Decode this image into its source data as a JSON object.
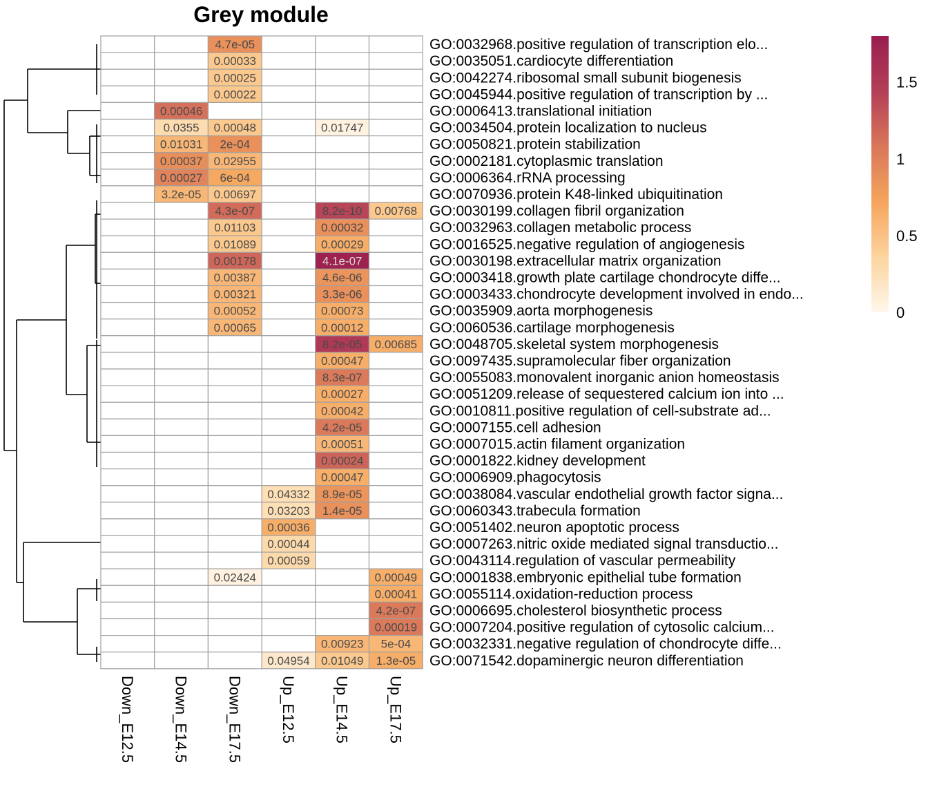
{
  "chart_data": {
    "type": "heatmap",
    "title": "Grey module",
    "columns": [
      "Down_E12.5",
      "Down_E14.5",
      "Down_E17.5",
      "Up_E12.5",
      "Up_E14.5",
      "Up_E17.5"
    ],
    "rows": [
      "GO:0032968.positive regulation of transcription elo...",
      "GO:0035051.cardiocyte differentiation",
      "GO:0042274.ribosomal small subunit biogenesis",
      "GO:0045944.positive regulation of transcription by ...",
      "GO:0006413.translational initiation",
      "GO:0034504.protein localization to nucleus",
      "GO:0050821.protein stabilization",
      "GO:0002181.cytoplasmic translation",
      "GO:0006364.rRNA processing",
      "GO:0070936.protein K48-linked ubiquitination",
      "GO:0030199.collagen fibril organization",
      "GO:0032963.collagen metabolic process",
      "GO:0016525.negative regulation of angiogenesis",
      "GO:0030198.extracellular matrix organization",
      "GO:0003418.growth plate cartilage chondrocyte diffe...",
      "GO:0003433.chondrocyte development involved in endo...",
      "GO:0035909.aorta morphogenesis",
      "GO:0060536.cartilage morphogenesis",
      "GO:0048705.skeletal system morphogenesis",
      "GO:0097435.supramolecular fiber organization",
      "GO:0055083.monovalent inorganic anion homeostasis",
      "GO:0051209.release of sequestered calcium ion into ...",
      "GO:0010811.positive regulation of cell-substrate ad...",
      "GO:0007155.cell adhesion",
      "GO:0007015.actin filament organization",
      "GO:0001822.kidney development",
      "GO:0006909.phagocytosis",
      "GO:0038084.vascular endothelial growth factor signa...",
      "GO:0060343.trabecula formation",
      "GO:0051402.neuron apoptotic process",
      "GO:0007263.nitric oxide mediated signal transductio...",
      "GO:0043114.regulation of vascular permeability",
      "GO:0001838.embryonic epithelial tube formation",
      "GO:0055114.oxidation-reduction process",
      "GO:0006695.cholesterol biosynthetic process",
      "GO:0007204.positive regulation of cytosolic calcium...",
      "GO:0032331.negative regulation of chondrocyte diffe...",
      "GO:0071542.dopaminergic neuron differentiation"
    ],
    "cells": [
      [
        null,
        null,
        {
          "label": "4.7e-05",
          "value": 0.88
        },
        null,
        null,
        null
      ],
      [
        null,
        null,
        {
          "label": "0.00033",
          "value": 0.45
        },
        null,
        null,
        null
      ],
      [
        null,
        null,
        {
          "label": "0.00025",
          "value": 0.45
        },
        null,
        null,
        null
      ],
      [
        null,
        null,
        {
          "label": "0.00022",
          "value": 0.45
        },
        null,
        null,
        null
      ],
      [
        null,
        {
          "label": "0.00046",
          "value": 1.12
        },
        null,
        null,
        null,
        null
      ],
      [
        null,
        {
          "label": "0.0355",
          "value": 0.28
        },
        {
          "label": "0.00048",
          "value": 0.45
        },
        null,
        {
          "label": "0.01747",
          "value": 0.05
        },
        null
      ],
      [
        null,
        {
          "label": "0.01031",
          "value": 0.58
        },
        {
          "label": "2e-04",
          "value": 0.88
        },
        null,
        null,
        null
      ],
      [
        null,
        {
          "label": "0.00037",
          "value": 0.9
        },
        {
          "label": "0.02955",
          "value": 0.58
        },
        null,
        null,
        null
      ],
      [
        null,
        {
          "label": "0.00027",
          "value": 0.98
        },
        {
          "label": "6e-04",
          "value": 0.7
        },
        null,
        null,
        null
      ],
      [
        null,
        {
          "label": "3.2e-05",
          "value": 0.58
        },
        {
          "label": "0.00697",
          "value": 0.45
        },
        null,
        null,
        null
      ],
      [
        null,
        null,
        {
          "label": "4.3e-07",
          "value": 1.15
        },
        null,
        {
          "label": "8.2e-10",
          "value": 1.4
        },
        {
          "label": "0.00768",
          "value": 0.45
        }
      ],
      [
        null,
        null,
        {
          "label": "0.01103",
          "value": 0.45
        },
        null,
        {
          "label": "0.00032",
          "value": 0.88
        },
        null
      ],
      [
        null,
        null,
        {
          "label": "0.01089",
          "value": 0.45
        },
        null,
        {
          "label": "0.00029",
          "value": 0.65
        },
        null
      ],
      [
        null,
        null,
        {
          "label": "0.00178",
          "value": 1.18
        },
        null,
        {
          "label": "4.1e-07",
          "value": 1.75
        },
        null
      ],
      [
        null,
        null,
        {
          "label": "0.00387",
          "value": 0.58
        },
        null,
        {
          "label": "4.6e-06",
          "value": 0.85
        },
        null
      ],
      [
        null,
        null,
        {
          "label": "0.00321",
          "value": 0.58
        },
        null,
        {
          "label": "3.3e-06",
          "value": 0.88
        },
        null
      ],
      [
        null,
        null,
        {
          "label": "0.00052",
          "value": 0.58
        },
        null,
        {
          "label": "0.00073",
          "value": 0.65
        },
        null
      ],
      [
        null,
        null,
        {
          "label": "0.00065",
          "value": 0.58
        },
        null,
        {
          "label": "0.00012",
          "value": 0.65
        },
        null
      ],
      [
        null,
        null,
        null,
        null,
        {
          "label": "8.2e-05",
          "value": 1.5
        },
        {
          "label": "0.00685",
          "value": 0.65
        }
      ],
      [
        null,
        null,
        null,
        null,
        {
          "label": "0.00047",
          "value": 0.65
        },
        null
      ],
      [
        null,
        null,
        null,
        null,
        {
          "label": "8.3e-07",
          "value": 1.05
        },
        null
      ],
      [
        null,
        null,
        null,
        null,
        {
          "label": "0.00027",
          "value": 0.65
        },
        null
      ],
      [
        null,
        null,
        null,
        null,
        {
          "label": "0.00042",
          "value": 0.65
        },
        null
      ],
      [
        null,
        null,
        null,
        null,
        {
          "label": "4.2e-05",
          "value": 1.05
        },
        null
      ],
      [
        null,
        null,
        null,
        null,
        {
          "label": "0.00051",
          "value": 0.58
        },
        null
      ],
      [
        null,
        null,
        null,
        null,
        {
          "label": "0.00024",
          "value": 1.2
        },
        null
      ],
      [
        null,
        null,
        null,
        null,
        {
          "label": "0.00047",
          "value": 0.65
        },
        null
      ],
      [
        null,
        null,
        null,
        {
          "label": "0.04332",
          "value": 0.25
        },
        {
          "label": "8.9e-05",
          "value": 0.85
        },
        null
      ],
      [
        null,
        null,
        null,
        {
          "label": "0.03203",
          "value": 0.25
        },
        {
          "label": "1.4e-05",
          "value": 0.88
        },
        null
      ],
      [
        null,
        null,
        null,
        {
          "label": "0.00036",
          "value": 0.65
        },
        null,
        null
      ],
      [
        null,
        null,
        null,
        {
          "label": "0.00044",
          "value": 0.3
        },
        null,
        null
      ],
      [
        null,
        null,
        null,
        {
          "label": "0.00059",
          "value": 0.3
        },
        null,
        null
      ],
      [
        null,
        null,
        {
          "label": "0.02424",
          "value": 0.05
        },
        null,
        null,
        {
          "label": "0.00049",
          "value": 0.65
        }
      ],
      [
        null,
        null,
        null,
        null,
        null,
        {
          "label": "0.00041",
          "value": 0.65
        }
      ],
      [
        null,
        null,
        null,
        null,
        null,
        {
          "label": "4.2e-07",
          "value": 1.05
        }
      ],
      [
        null,
        null,
        null,
        null,
        null,
        {
          "label": "0.00019",
          "value": 1.05
        }
      ],
      [
        null,
        null,
        null,
        null,
        {
          "label": "0.00923",
          "value": 0.58
        },
        {
          "label": "5e-04",
          "value": 0.58
        }
      ],
      [
        null,
        null,
        null,
        {
          "label": "0.04954",
          "value": 0.15
        },
        {
          "label": "0.01049",
          "value": 0.45
        },
        {
          "label": "1.3e-05",
          "value": 0.65
        }
      ]
    ],
    "legend": {
      "ticks": [
        0,
        0.5,
        1,
        1.5
      ],
      "tick_labels": [
        "0",
        "0.5",
        "1",
        "1.5"
      ],
      "range": [
        0,
        1.8
      ],
      "placement": "right",
      "colors": [
        "#fff7ec",
        "#fdd49e",
        "#f5a55c",
        "#d9765a",
        "#b33f58",
        "#9a1d4e"
      ]
    },
    "cluster_dendrogram": "left",
    "grid": true
  }
}
